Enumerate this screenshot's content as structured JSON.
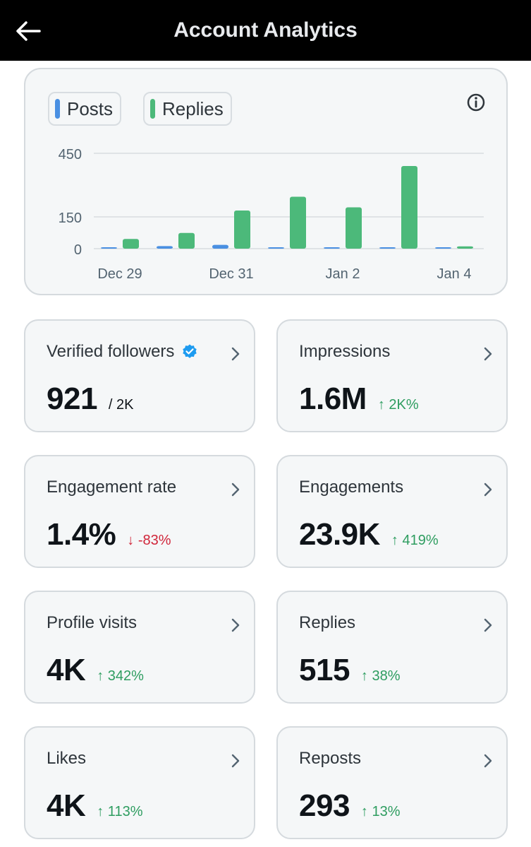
{
  "header": {
    "title": "Account Analytics"
  },
  "legend": [
    {
      "label": "Posts",
      "color": "#4a90e2"
    },
    {
      "label": "Replies",
      "color": "#4cb97a"
    }
  ],
  "chart_data": {
    "type": "bar",
    "title": "",
    "xlabel": "",
    "ylabel": "",
    "ylim": [
      0,
      450
    ],
    "yticks": [
      "0",
      "150",
      "450"
    ],
    "ytick_values": [
      0,
      150,
      450
    ],
    "x_tick_labels": [
      "Dec 29",
      "Dec 31",
      "Jan 2",
      "Jan 4"
    ],
    "categories": [
      "Dec 29",
      "Dec 30",
      "Dec 31",
      "Jan 1",
      "Jan 2",
      "Jan 3",
      "Jan 4"
    ],
    "series": [
      {
        "name": "Posts",
        "color": "#4a90e2",
        "values": [
          4,
          12,
          18,
          4,
          5,
          6,
          3
        ]
      },
      {
        "name": "Replies",
        "color": "#4cb97a",
        "values": [
          46,
          74,
          180,
          245,
          195,
          390,
          11
        ]
      }
    ]
  },
  "stats": [
    {
      "label": "Verified followers",
      "value": "921",
      "sub": "/ 2K",
      "delta": "",
      "direction": "",
      "verified": true
    },
    {
      "label": "Impressions",
      "value": "1.6M",
      "sub": "",
      "delta": "↑ 2K%",
      "direction": "up",
      "verified": false
    },
    {
      "label": "Engagement rate",
      "value": "1.4%",
      "sub": "",
      "delta": "↓ -83%",
      "direction": "down",
      "verified": false
    },
    {
      "label": "Engagements",
      "value": "23.9K",
      "sub": "",
      "delta": "↑ 419%",
      "direction": "up",
      "verified": false
    },
    {
      "label": "Profile visits",
      "value": "4K",
      "sub": "",
      "delta": "↑ 342%",
      "direction": "up",
      "verified": false
    },
    {
      "label": "Replies",
      "value": "515",
      "sub": "",
      "delta": "↑ 38%",
      "direction": "up",
      "verified": false
    },
    {
      "label": "Likes",
      "value": "4K",
      "sub": "",
      "delta": "↑ 113%",
      "direction": "up",
      "verified": false
    },
    {
      "label": "Reposts",
      "value": "293",
      "sub": "",
      "delta": "↑ 13%",
      "direction": "up",
      "verified": false
    }
  ]
}
